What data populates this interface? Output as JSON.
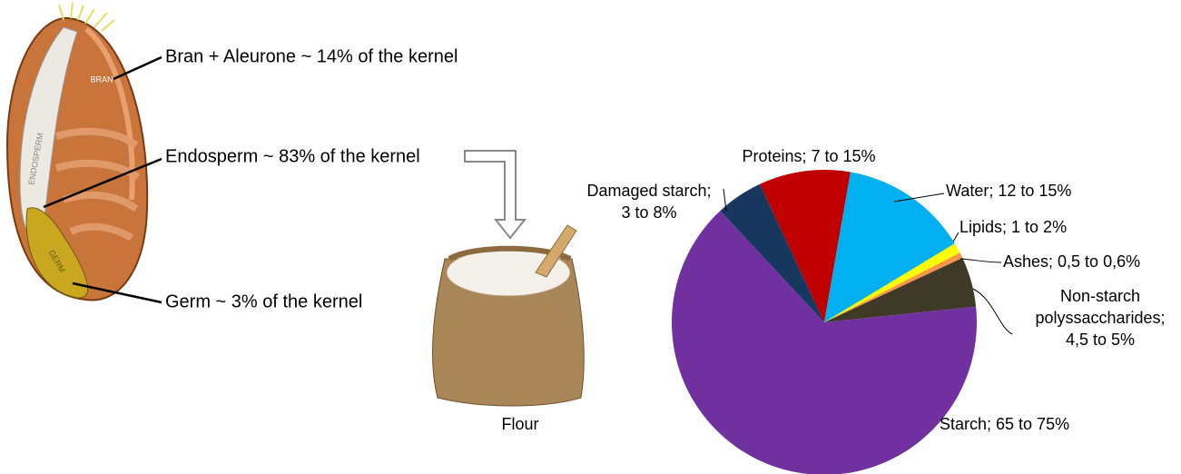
{
  "labels": {
    "bran": "Bran + Aleurone ~ 14% of the kernel",
    "endosperm": "Endosperm ~ 83% of the kernel",
    "germ": "Germ ~ 3% of the kernel",
    "flour": "Flour"
  },
  "kernel_labels": {
    "bran": "BRAN",
    "endosperm": "ENDOSPERM",
    "germ": "GERM"
  },
  "chart_data": {
    "type": "pie",
    "categories": [
      [
        "Proteins; 7 to 15%"
      ],
      [
        "Water; 12 to 15%"
      ],
      [
        "Lipids; 1 to 2%"
      ],
      [
        "Ashes; 0,5 to 0,6%"
      ],
      [
        "Non-starch",
        "polyssaccharides;",
        "4,5 to 5%"
      ],
      [
        "Starch; 65 to 75%"
      ],
      [
        "Damaged starch;",
        "3 to 8%"
      ]
    ],
    "values": [
      9.7,
      13.6,
      1.1,
      0.6,
      5.3,
      64.7,
      5.0
    ],
    "colors": [
      "#c00000",
      "#00b0f0",
      "#ffff00",
      "#f79646",
      "#3f3a28",
      "#7030a0",
      "#17375e"
    ]
  }
}
